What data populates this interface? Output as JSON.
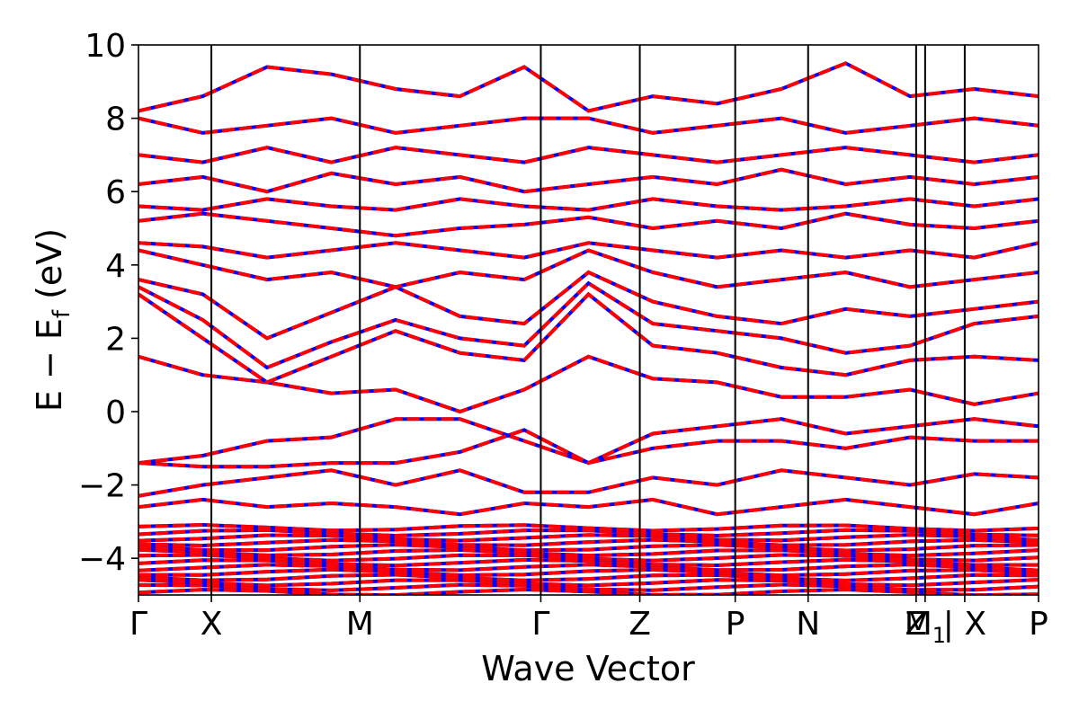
{
  "chart_data": {
    "type": "line",
    "title": "",
    "xlabel": "Wave Vector",
    "ylabel": {
      "base": "E − E",
      "sub": "f",
      "unit": " (eV)"
    },
    "ylim": [
      -5,
      10
    ],
    "yticks": [
      {
        "value": -4,
        "label": "−4"
      },
      {
        "value": -2,
        "label": "−2"
      },
      {
        "value": 0,
        "label": "0"
      },
      {
        "value": 2,
        "label": "2"
      },
      {
        "value": 4,
        "label": "4"
      },
      {
        "value": 6,
        "label": "6"
      },
      {
        "value": 8,
        "label": "8"
      },
      {
        "value": 10,
        "label": "10"
      }
    ],
    "xlim": [
      0,
      1
    ],
    "high_symmetry_points": [
      {
        "pos": 0.0,
        "label": "Γ"
      },
      {
        "pos": 0.081,
        "label": "X"
      },
      {
        "pos": 0.246,
        "label": "M"
      },
      {
        "pos": 0.447,
        "label": "Γ"
      },
      {
        "pos": 0.557,
        "label": "Z"
      },
      {
        "pos": 0.663,
        "label": "P"
      },
      {
        "pos": 0.744,
        "label": "N"
      },
      {
        "pos": 0.864,
        "label": "Z"
      },
      {
        "pos": 0.874,
        "label": "M",
        "sub": "1"
      },
      {
        "pos": 0.918,
        "label": "| X"
      },
      {
        "pos": 1.0,
        "label": "P"
      }
    ],
    "grid": false,
    "legend": "none",
    "colors": {
      "series_a": "#0000ff",
      "series_b": "#ff0000",
      "vline": "#000000"
    },
    "bands": [
      [
        -1.4,
        -1.2,
        -0.8,
        -0.7,
        -0.2,
        -0.2,
        -0.8,
        -1.4,
        -1.0,
        -0.8,
        -0.8,
        -1.0,
        -0.7,
        -0.8,
        -0.8
      ],
      [
        -1.4,
        -1.5,
        -1.5,
        -1.4,
        -1.4,
        -1.1,
        -0.5,
        -1.4,
        -0.6,
        -0.4,
        -0.2,
        -0.6,
        -0.4,
        -0.2,
        -0.4
      ],
      [
        1.5,
        1.0,
        0.8,
        0.5,
        0.6,
        0.0,
        0.6,
        1.5,
        0.9,
        0.8,
        0.4,
        0.4,
        0.6,
        0.2,
        0.5
      ],
      [
        3.2,
        2.0,
        0.8,
        1.5,
        2.2,
        1.6,
        1.4,
        3.2,
        1.8,
        1.6,
        1.2,
        1.0,
        1.4,
        1.5,
        1.4
      ],
      [
        3.4,
        2.5,
        1.2,
        1.9,
        2.5,
        2.0,
        1.8,
        3.5,
        2.4,
        2.2,
        2.0,
        1.6,
        1.8,
        2.4,
        2.6
      ],
      [
        3.6,
        3.2,
        2.0,
        2.7,
        3.4,
        2.6,
        2.4,
        3.8,
        3.0,
        2.6,
        2.4,
        2.8,
        2.6,
        2.8,
        3.0
      ],
      [
        4.4,
        4.0,
        3.6,
        3.8,
        3.4,
        3.8,
        3.6,
        4.4,
        3.8,
        3.4,
        3.6,
        3.8,
        3.4,
        3.6,
        3.8
      ],
      [
        4.6,
        4.5,
        4.2,
        4.4,
        4.6,
        4.4,
        4.2,
        4.6,
        4.4,
        4.2,
        4.4,
        4.2,
        4.4,
        4.2,
        4.6
      ],
      [
        5.2,
        5.4,
        5.2,
        5.0,
        4.8,
        5.0,
        5.1,
        5.3,
        5.0,
        5.2,
        5.0,
        5.4,
        5.1,
        5.0,
        5.2
      ],
      [
        5.6,
        5.5,
        5.8,
        5.6,
        5.5,
        5.8,
        5.6,
        5.5,
        5.8,
        5.6,
        5.5,
        5.6,
        5.8,
        5.6,
        5.8
      ],
      [
        6.2,
        6.4,
        6.0,
        6.5,
        6.2,
        6.4,
        6.0,
        6.2,
        6.4,
        6.2,
        6.6,
        6.2,
        6.4,
        6.2,
        6.4
      ],
      [
        7.0,
        6.8,
        7.2,
        6.8,
        7.2,
        7.0,
        6.8,
        7.2,
        7.0,
        6.8,
        7.0,
        7.2,
        7.0,
        6.8,
        7.0
      ],
      [
        8.0,
        7.6,
        7.8,
        8.0,
        7.6,
        7.8,
        8.0,
        8.0,
        7.6,
        7.8,
        8.0,
        7.6,
        7.8,
        8.0,
        7.8
      ],
      [
        8.2,
        8.6,
        9.4,
        9.2,
        8.8,
        8.6,
        9.4,
        8.2,
        8.6,
        8.4,
        8.8,
        9.5,
        8.6,
        8.8,
        8.6
      ],
      [
        -2.3,
        -2.0,
        -1.8,
        -1.6,
        -2.0,
        -1.6,
        -2.2,
        -2.2,
        -1.8,
        -2.0,
        -1.6,
        -1.8,
        -2.0,
        -1.7,
        -1.8
      ],
      [
        -2.6,
        -2.4,
        -2.6,
        -2.5,
        -2.6,
        -2.8,
        -2.5,
        -2.6,
        -2.4,
        -2.8,
        -2.6,
        -2.4,
        -2.6,
        -2.8,
        -2.5
      ]
    ],
    "core_bands_ylim": [
      -5,
      -3.1
    ],
    "core_band_count": 14
  }
}
